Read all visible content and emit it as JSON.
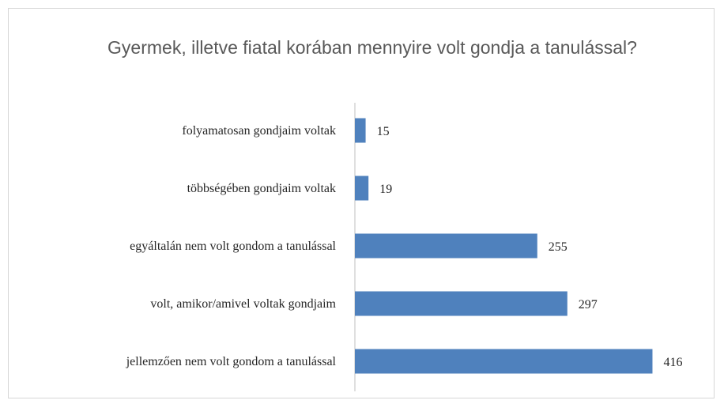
{
  "chart_data": {
    "type": "bar",
    "orientation": "horizontal",
    "title": "Gyermek, illetve fiatal korában mennyire volt gondja a tanulással?",
    "categories": [
      "folyamatosan gondjaim voltak",
      "többségében gondjaim voltak",
      "egyáltalán nem volt gondom a tanulással",
      "volt, amikor/amivel voltak gondjaim",
      "jellemzően nem volt gondom a tanulással"
    ],
    "values": [
      15,
      19,
      255,
      297,
      416
    ],
    "data_labels": [
      "15",
      "19",
      "255",
      "297",
      "416"
    ],
    "bar_color": "#4f81bd",
    "grid": false,
    "legend": "none"
  }
}
